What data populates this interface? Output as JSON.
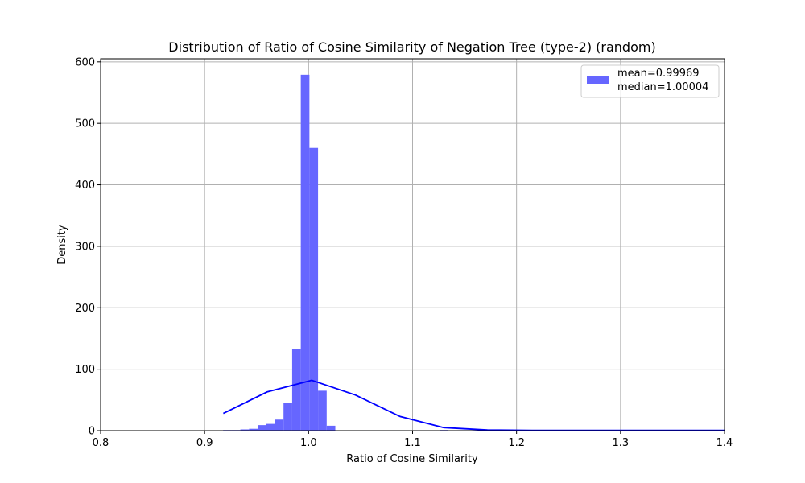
{
  "chart_data": {
    "type": "bar",
    "title": "Distribution of Ratio of Cosine Similarity of Negation Tree (type-2) (random)",
    "xlabel": "Ratio of Cosine Similarity",
    "ylabel": "Density",
    "xlim": [
      0.8,
      1.4
    ],
    "ylim": [
      0,
      605
    ],
    "xticks": [
      "0.8",
      "0.9",
      "1.0",
      "1.1",
      "1.2",
      "1.3",
      "1.4"
    ],
    "yticks": [
      "0",
      "100",
      "200",
      "300",
      "400",
      "500",
      "600"
    ],
    "grid": true,
    "legend_position": "top-right",
    "legend": [
      "mean=0.99969",
      "median=1.00004"
    ],
    "histogram": {
      "color": "#6666ff",
      "bin_width": 0.0083,
      "bins": [
        {
          "x": 0.9178,
          "y": 1
        },
        {
          "x": 0.9261,
          "y": 1
        },
        {
          "x": 0.9344,
          "y": 2
        },
        {
          "x": 0.9427,
          "y": 3
        },
        {
          "x": 0.951,
          "y": 9
        },
        {
          "x": 0.9593,
          "y": 11
        },
        {
          "x": 0.9676,
          "y": 18
        },
        {
          "x": 0.9759,
          "y": 45
        },
        {
          "x": 0.9842,
          "y": 133
        },
        {
          "x": 0.9925,
          "y": 579
        },
        {
          "x": 1.0008,
          "y": 460
        },
        {
          "x": 1.0091,
          "y": 65
        },
        {
          "x": 1.0174,
          "y": 8
        },
        {
          "x": 1.126,
          "y": 1
        }
      ]
    },
    "line": {
      "color": "#0000ff",
      "points": [
        [
          0.918,
          28
        ],
        [
          0.96,
          63
        ],
        [
          1.003,
          82
        ],
        [
          1.045,
          58
        ],
        [
          1.088,
          23
        ],
        [
          1.13,
          5
        ],
        [
          1.172,
          1
        ],
        [
          1.215,
          0.5
        ],
        [
          1.4,
          0.5
        ]
      ]
    }
  }
}
